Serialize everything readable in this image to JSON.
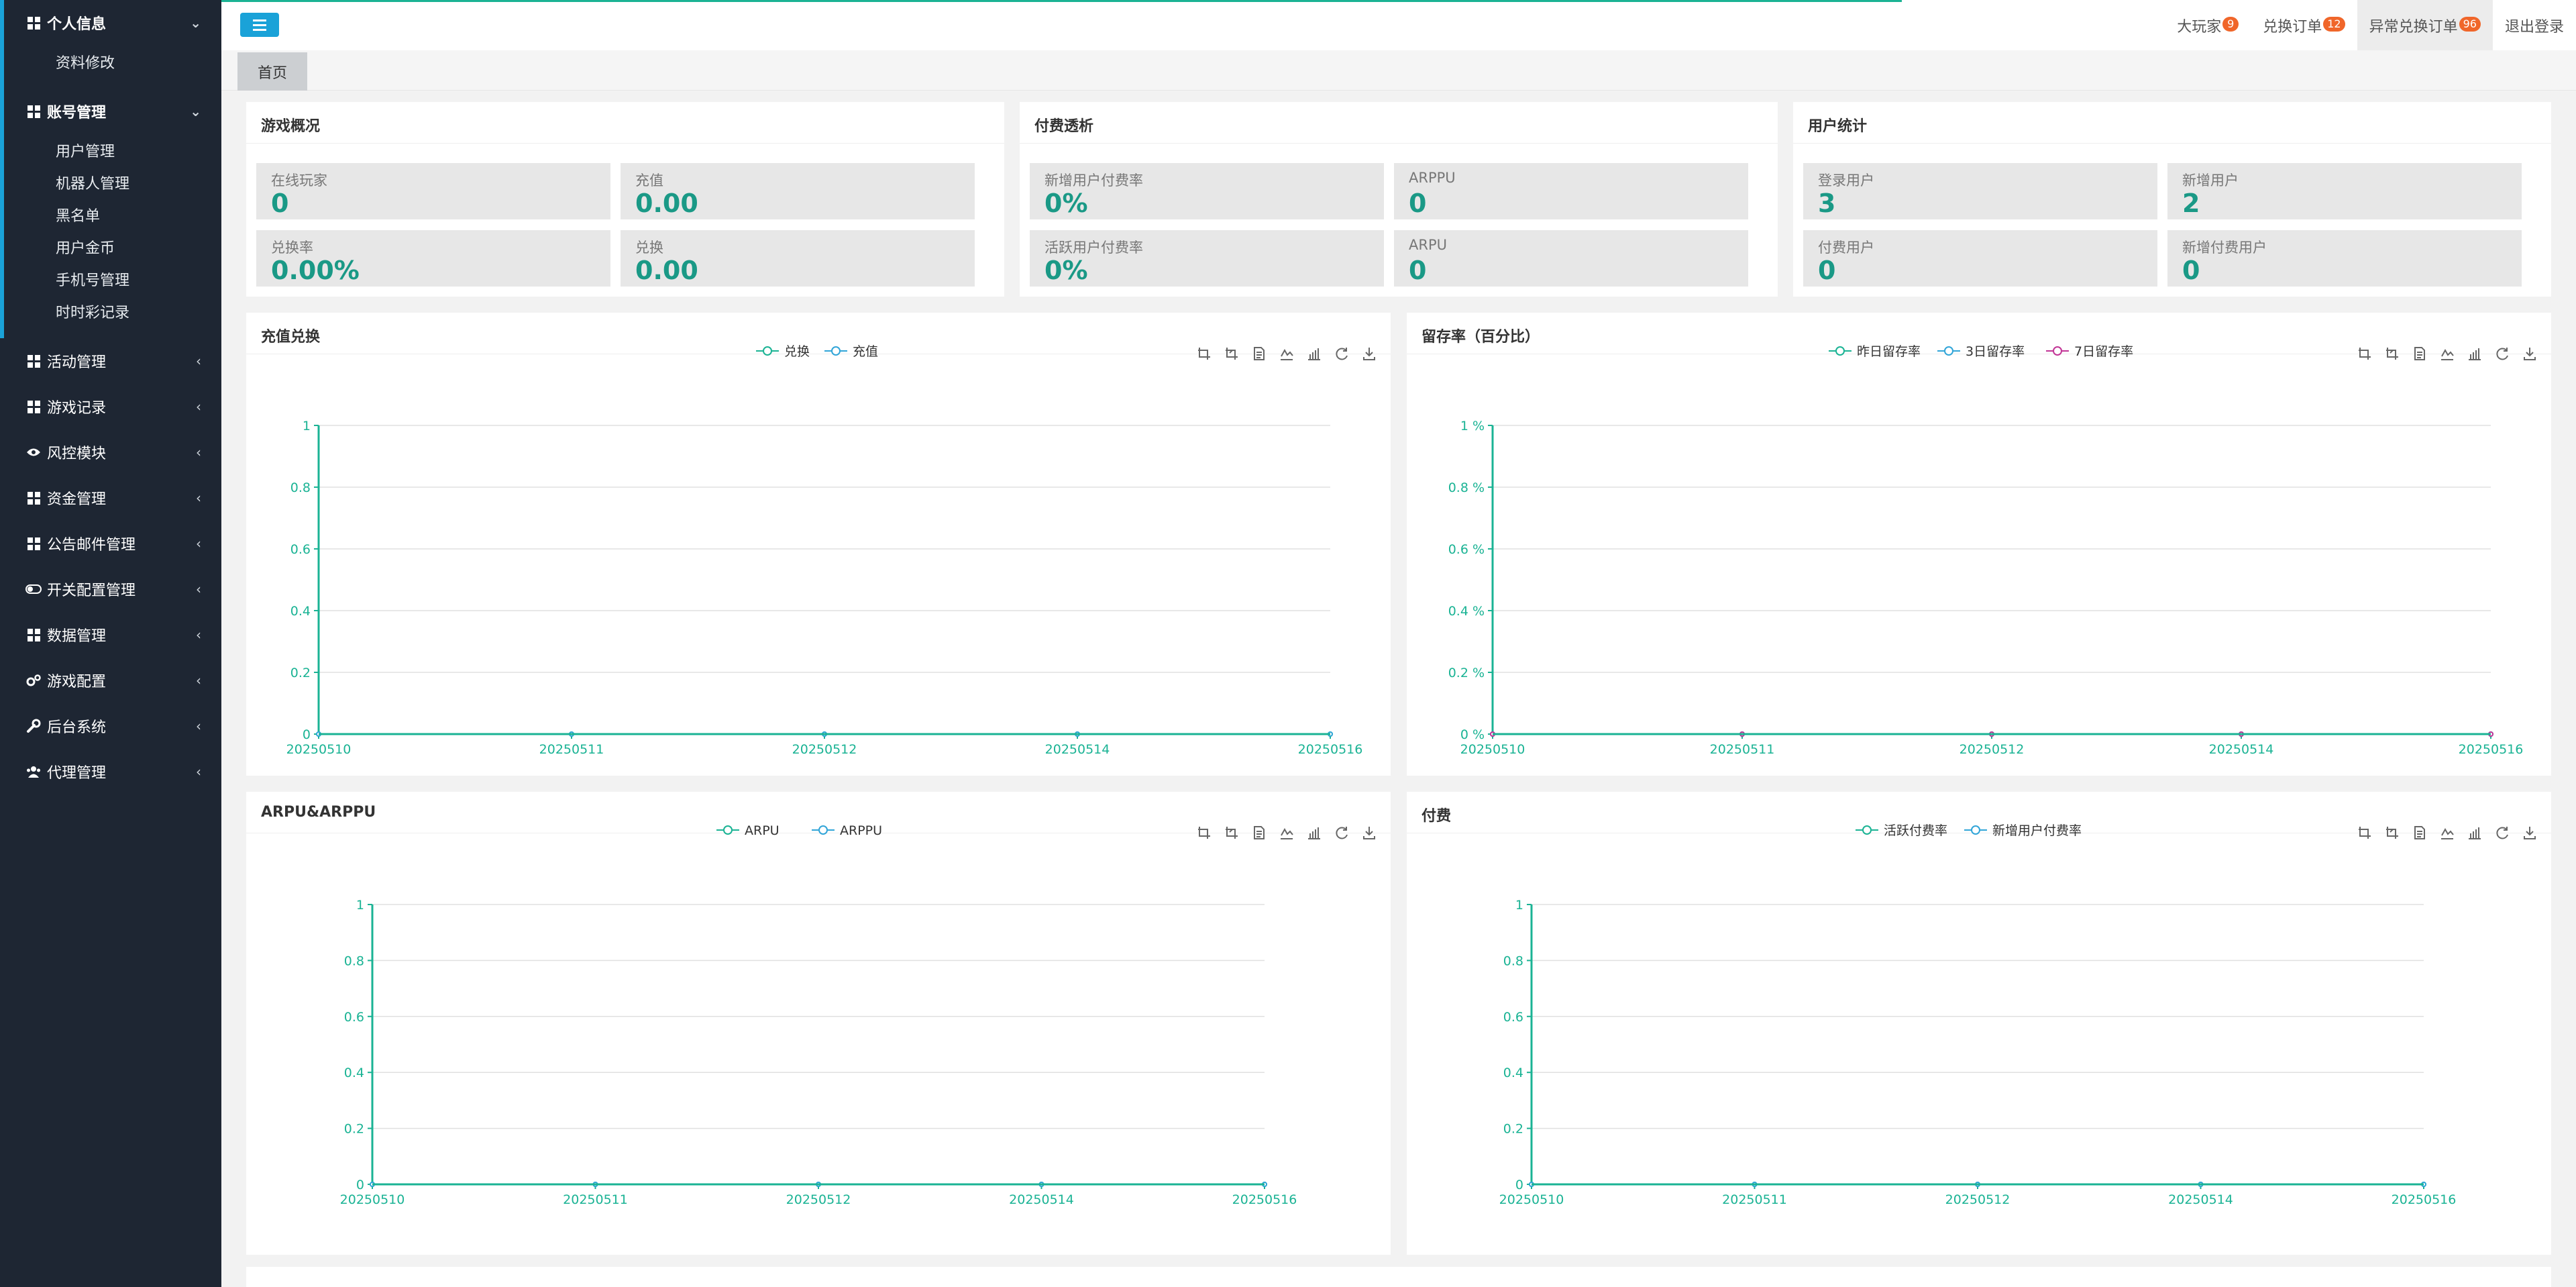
{
  "colors": {
    "sidebar": "#1e2633",
    "accent": "#1aa2d8",
    "teal": "#1a9986",
    "badge_red": "#ed5565",
    "badge_orange": "#f0662a",
    "series_teal": "#1ab394",
    "series_blue": "#31a5d8",
    "series_purple": "#c23596"
  },
  "sidebar": {
    "groups": [
      {
        "label": "个人信息",
        "icon": "grid-icon",
        "open": true,
        "items": [
          "资料修改"
        ]
      },
      {
        "label": "账号管理",
        "icon": "grid-icon",
        "open": true,
        "items": [
          "用户管理",
          "机器人管理",
          "黑名单",
          "用户金币",
          "手机号管理",
          "时时彩记录"
        ]
      },
      {
        "label": "活动管理",
        "icon": "grid-icon"
      },
      {
        "label": "游戏记录",
        "icon": "grid-icon"
      },
      {
        "label": "风控模块",
        "icon": "eye-icon"
      },
      {
        "label": "资金管理",
        "icon": "grid-icon"
      },
      {
        "label": "公告邮件管理",
        "icon": "grid-icon"
      },
      {
        "label": "开关配置管理",
        "icon": "toggle-icon"
      },
      {
        "label": "数据管理",
        "icon": "grid-icon"
      },
      {
        "label": "游戏配置",
        "icon": "gears-icon"
      },
      {
        "label": "后台系统",
        "icon": "wrench-icon"
      },
      {
        "label": "代理管理",
        "icon": "users-icon"
      }
    ],
    "arrow_open": "⌄",
    "arrow_closed": "‹"
  },
  "topbar": {
    "links": [
      {
        "label": "大玩家",
        "badge": "9",
        "badge_color": "orange"
      },
      {
        "label": "兑换订单",
        "badge": "12",
        "badge_color": "orange"
      },
      {
        "label": "异常兑换订单",
        "badge": "96",
        "badge_color": "orange",
        "active": true
      },
      {
        "label": "退出登录"
      }
    ]
  },
  "tabs": {
    "home": "首页"
  },
  "cards": {
    "game": {
      "title": "游戏概况",
      "stats": [
        {
          "label": "在线玩家",
          "value": "0"
        },
        {
          "label": "充值",
          "value": "0.00"
        },
        {
          "label": "兑换率",
          "value": "0.00%"
        },
        {
          "label": "兑换",
          "value": "0.00"
        }
      ]
    },
    "pay": {
      "title": "付费透析",
      "stats": [
        {
          "label": "新增用户付费率",
          "value": "0%"
        },
        {
          "label": "ARPPU",
          "value": "0"
        },
        {
          "label": "活跃用户付费率",
          "value": "0%"
        },
        {
          "label": "ARPU",
          "value": "0"
        }
      ]
    },
    "users": {
      "title": "用户统计",
      "stats": [
        {
          "label": "登录用户",
          "value": "3"
        },
        {
          "label": "新增用户",
          "value": "2"
        },
        {
          "label": "付费用户",
          "value": "0"
        },
        {
          "label": "新增付费用户",
          "value": "0"
        }
      ]
    }
  },
  "chart_data": [
    {
      "type": "line",
      "title": "充值兑换",
      "categories": [
        "20250510",
        "20250511",
        "20250512",
        "20250514",
        "20250516"
      ],
      "ylim": [
        0,
        1
      ],
      "yticks": [
        "0",
        "0.2",
        "0.4",
        "0.6",
        "0.8",
        "1"
      ],
      "series": [
        {
          "name": "兑换",
          "values": [
            0,
            0,
            0,
            0,
            0
          ],
          "color": "#1ab394"
        },
        {
          "name": "充值",
          "values": [
            0,
            0,
            0,
            0,
            0
          ],
          "color": "#31a5d8"
        }
      ]
    },
    {
      "type": "line",
      "title": "留存率（百分比）",
      "categories": [
        "20250510",
        "20250511",
        "20250512",
        "20250514",
        "20250516"
      ],
      "ylim": [
        0,
        1
      ],
      "yticks": [
        "0 %",
        "0.2 %",
        "0.4 %",
        "0.6 %",
        "0.8 %",
        "1 %"
      ],
      "series": [
        {
          "name": "昨日留存率",
          "values": [
            0,
            0,
            0,
            0,
            0
          ],
          "color": "#1ab394"
        },
        {
          "name": "3日留存率",
          "values": [
            0,
            0,
            0,
            0,
            0
          ],
          "color": "#31a5d8"
        },
        {
          "name": "7日留存率",
          "values": [
            0,
            0,
            0,
            0,
            0
          ],
          "color": "#c23596"
        }
      ]
    },
    {
      "type": "line",
      "title": "ARPU&ARPPU",
      "categories": [
        "20250510",
        "20250511",
        "20250512",
        "20250514",
        "20250516"
      ],
      "ylim": [
        0,
        1
      ],
      "yticks": [
        "0",
        "0.2",
        "0.4",
        "0.6",
        "0.8",
        "1"
      ],
      "series": [
        {
          "name": "ARPU",
          "values": [
            0,
            0,
            0,
            0,
            0
          ],
          "color": "#1ab394"
        },
        {
          "name": "ARPPU",
          "values": [
            0,
            0,
            0,
            0,
            0
          ],
          "color": "#31a5d8"
        }
      ]
    },
    {
      "type": "line",
      "title": "付费",
      "categories": [
        "20250510",
        "20250511",
        "20250512",
        "20250514",
        "20250516"
      ],
      "ylim": [
        0,
        1
      ],
      "yticks": [
        "0",
        "0.2",
        "0.4",
        "0.6",
        "0.8",
        "1"
      ],
      "series": [
        {
          "name": "活跃付费率",
          "values": [
            0,
            0,
            0,
            0,
            0
          ],
          "color": "#1ab394"
        },
        {
          "name": "新增用户付费率",
          "values": [
            0,
            0,
            0,
            0,
            0
          ],
          "color": "#31a5d8"
        }
      ]
    }
  ],
  "chart_toolbar": [
    "zoom-icon",
    "zoom-reset-icon",
    "data-view-icon",
    "line-chart-icon",
    "bar-chart-icon",
    "restore-icon",
    "save-image-icon"
  ]
}
